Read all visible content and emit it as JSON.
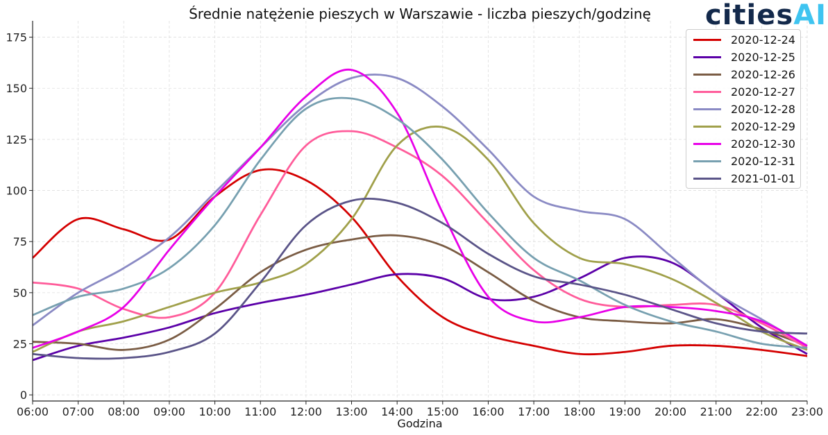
{
  "chart_data": {
    "type": "line",
    "title": "Średnie natężenie pieszych w Warszawie  - liczba pieszych/godzinę",
    "xlabel": "Godzina",
    "ylabel": "",
    "x": [
      "06:00",
      "07:00",
      "08:00",
      "09:00",
      "10:00",
      "11:00",
      "12:00",
      "13:00",
      "14:00",
      "15:00",
      "16:00",
      "17:00",
      "18:00",
      "19:00",
      "20:00",
      "21:00",
      "22:00",
      "23:00"
    ],
    "xlim": [
      6,
      23
    ],
    "ylim": [
      -3,
      183
    ],
    "yticks": [
      0,
      25,
      50,
      75,
      100,
      125,
      150,
      175
    ],
    "ytick_labels": [
      "0",
      "25",
      "50",
      "75",
      "100",
      "125",
      "150",
      "175"
    ],
    "grid": true,
    "legend_position": "top-right",
    "series": [
      {
        "name": "2020-12-24",
        "color": "#d40000",
        "values": [
          67,
          86,
          81,
          76,
          97,
          110,
          105,
          87,
          58,
          38,
          29,
          24,
          20,
          21,
          24,
          24,
          22,
          19
        ]
      },
      {
        "name": "2020-12-25",
        "color": "#5b00a8",
        "values": [
          17,
          24,
          28,
          33,
          40,
          45,
          49,
          54,
          59,
          57,
          47,
          48,
          57,
          67,
          65,
          50,
          33,
          20
        ]
      },
      {
        "name": "2020-12-26",
        "color": "#7a5c44",
        "values": [
          26,
          25,
          22,
          27,
          42,
          60,
          71,
          76,
          78,
          73,
          60,
          46,
          38,
          36,
          35,
          37,
          32,
          24
        ]
      },
      {
        "name": "2020-12-27",
        "color": "#ff5c9a",
        "values": [
          55,
          52,
          42,
          38,
          50,
          88,
          122,
          129,
          121,
          107,
          84,
          61,
          47,
          43,
          44,
          44,
          35,
          23
        ]
      },
      {
        "name": "2020-12-28",
        "color": "#8a8ac4",
        "values": [
          34,
          50,
          62,
          77,
          99,
          121,
          142,
          155,
          155,
          141,
          120,
          97,
          90,
          86,
          68,
          50,
          37,
          24
        ]
      },
      {
        "name": "2020-12-29",
        "color": "#a0a04a",
        "values": [
          21,
          31,
          36,
          43,
          50,
          55,
          64,
          86,
          122,
          131,
          115,
          84,
          67,
          64,
          57,
          45,
          31,
          22
        ]
      },
      {
        "name": "2020-12-30",
        "color": "#e800e8",
        "values": [
          23,
          31,
          43,
          71,
          97,
          121,
          146,
          159,
          138,
          89,
          48,
          36,
          38,
          43,
          43,
          41,
          36,
          24
        ]
      },
      {
        "name": "2020-12-31",
        "color": "#77a0b0",
        "values": [
          39,
          48,
          52,
          62,
          83,
          115,
          140,
          145,
          135,
          115,
          89,
          67,
          56,
          44,
          36,
          31,
          25,
          23
        ]
      },
      {
        "name": "2021-01-01",
        "color": "#5a5488",
        "values": [
          20,
          18,
          18,
          21,
          30,
          55,
          83,
          95,
          94,
          84,
          69,
          58,
          54,
          49,
          42,
          35,
          31,
          30
        ]
      }
    ]
  },
  "logo": {
    "part1": "cities",
    "part2": "AI"
  }
}
